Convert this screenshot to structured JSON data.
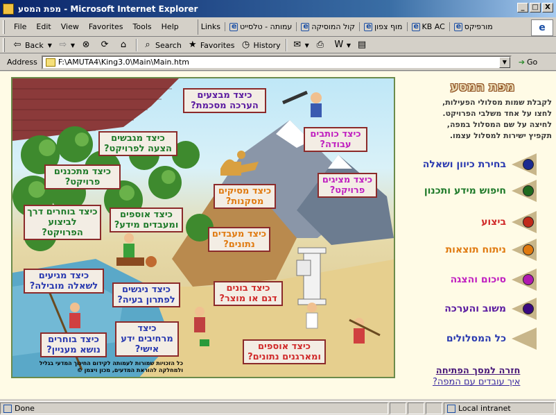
{
  "window": {
    "title": "מפת המסע - Microsoft Internet Explorer",
    "min": "_",
    "max": "□",
    "close": "X"
  },
  "menu": [
    "File",
    "Edit",
    "View",
    "Favorites",
    "Tools",
    "Help"
  ],
  "links": {
    "label": "Links",
    "items": [
      "עמותה - טלסייט",
      "קול המוסיקה",
      "מוף צפון",
      "KB AC",
      "מורפיקס"
    ]
  },
  "toolbar": {
    "back": "Back",
    "search": "Search",
    "favorites": "Favorites",
    "history": "History"
  },
  "address": {
    "label": "Address",
    "value": "F:\\AMUTA4\\King3.0\\Main\\Main.htm",
    "go": "Go"
  },
  "map": {
    "labels": [
      "כיצד מבצעים הערכה מסכמת?",
      "כיצד כותבים עבודה?",
      "כיצד מציגים פרויקט?",
      "כיצד מסיקים מסקנות?",
      "כיצד מעבדים נתונים?",
      "כיצד מגבשים הצעה לפרויקט?",
      "כיצד מתכננים פרויקט?",
      "כיצד בוחרים דרך לביצוע הפרויקט?",
      "כיצד אוספים ומעבדים מידע?",
      "כיצד מגיעים לשאלה מובילה?",
      "כיצד ניגשים לפתרון בעיה?",
      "כיצד בונים דגם או מוצר?",
      "כיצד מרחיבים ידע אישי?",
      "כיצד בוחרים נושא מעניין?",
      "כיצד אוספים ומארגנים נתונים?"
    ],
    "credit": "כל הזכויות שמורות לעמותה לקידום החינוך המדעי בגליל ולמחלקה להוראת המדעים, מכון ויצמן ©"
  },
  "panel": {
    "title": "מפת המסע",
    "instructions": [
      "לקבלת שמות מסלולי הפעילות,",
      "לחצו על אחד משלבי הפרויקט.",
      "לחיצה על שם המסלול במפה,",
      "תקפיץ ישירות למסלול עצמו."
    ],
    "paths": [
      {
        "name": "בחירת כיוון ושאלה",
        "color": "#2a3ab0"
      },
      {
        "name": "חיפוש מידע ותכנון",
        "color": "#1f7a2a"
      },
      {
        "name": "ביצוע",
        "color": "#d02a2a"
      },
      {
        "name": "ניתוח תוצאות",
        "color": "#e07a10"
      },
      {
        "name": "סיכום והצגה",
        "color": "#c020c0"
      },
      {
        "name": "משוב והערכה",
        "color": "#5a1aa0"
      },
      {
        "name": "כל המסלולים",
        "color": "#2a3ab0"
      }
    ],
    "links": [
      "חזרה למסך הפתיחה",
      "איך עובדים עם המפה?"
    ]
  },
  "status": {
    "text": "Done",
    "zone": "Local intranet"
  }
}
